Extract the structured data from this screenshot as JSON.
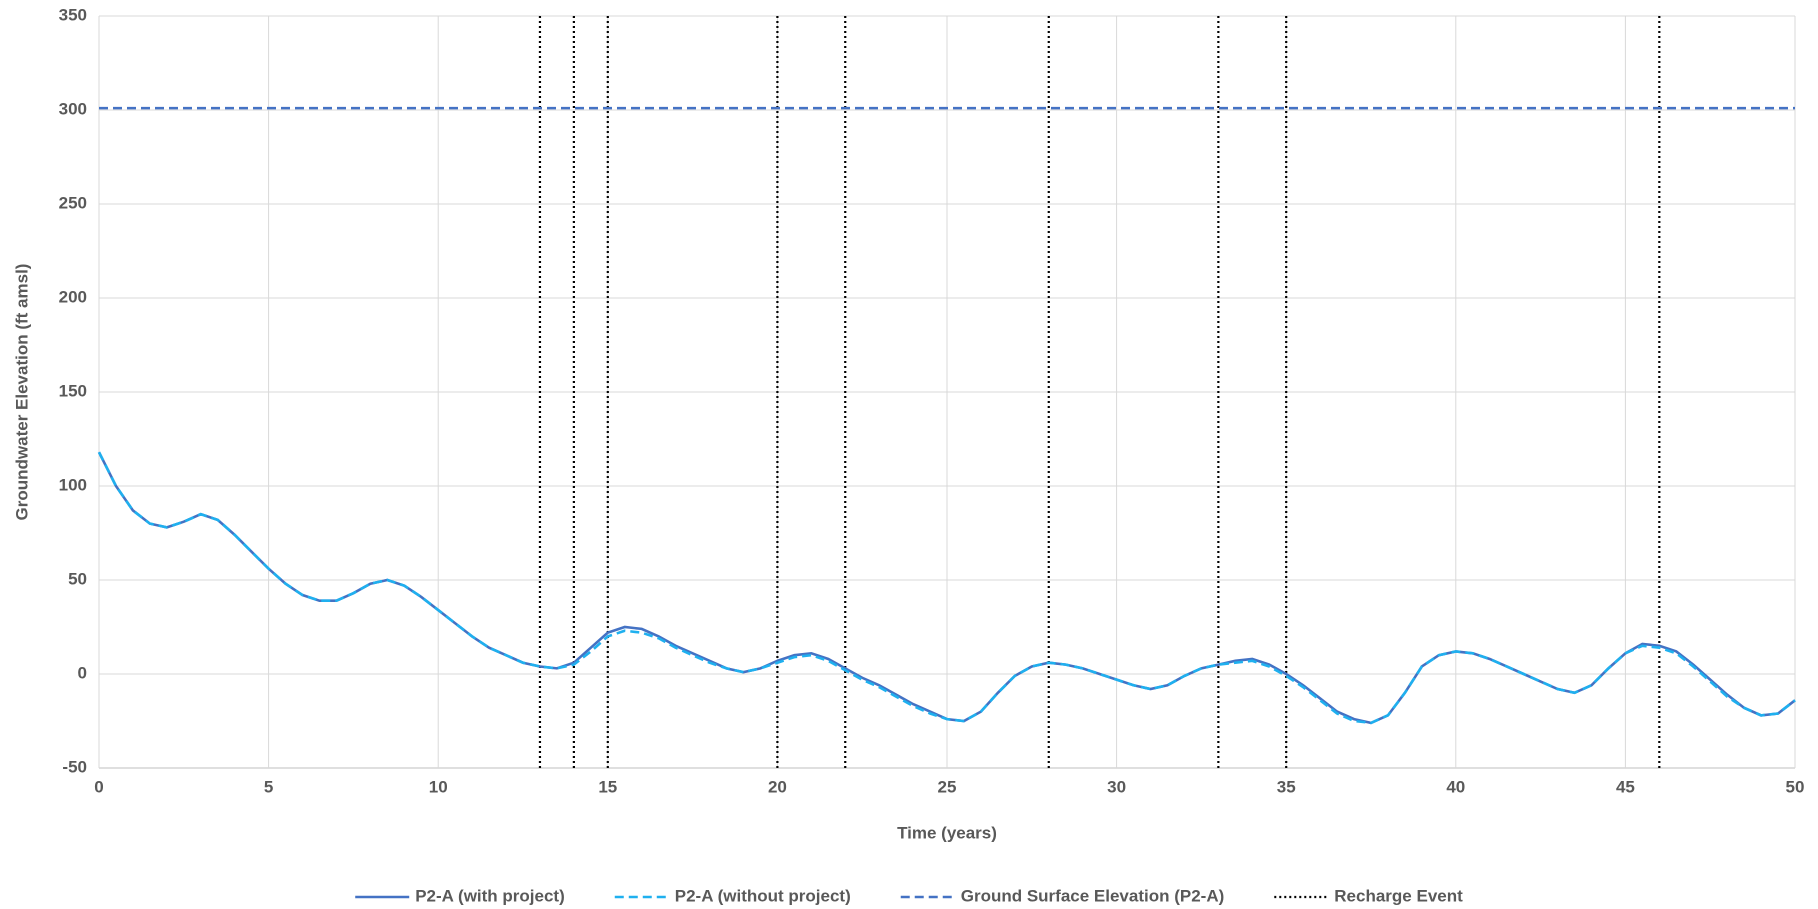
{
  "chart_data": {
    "type": "line",
    "xlabel": "Time (years)",
    "ylabel": "Groundwater Elevation (ft amsl)",
    "xlim": [
      0,
      50
    ],
    "xticks": [
      0,
      5,
      10,
      15,
      20,
      25,
      30,
      35,
      40,
      45,
      50
    ],
    "ylim": [
      -50,
      350
    ],
    "yticks": [
      -50,
      0,
      50,
      100,
      150,
      200,
      250,
      300,
      350
    ],
    "grid": true,
    "legend": "bottom",
    "x": [
      0,
      0.5,
      1,
      1.5,
      2,
      2.5,
      3,
      3.5,
      4,
      4.5,
      5,
      5.5,
      6,
      6.5,
      7,
      7.5,
      8,
      8.5,
      9,
      9.5,
      10,
      10.5,
      11,
      11.5,
      12,
      12.5,
      13,
      13.5,
      14,
      14.5,
      15,
      15.5,
      16,
      16.5,
      17,
      17.5,
      18,
      18.5,
      19,
      19.5,
      20,
      20.5,
      21,
      21.5,
      22,
      22.5,
      23,
      23.5,
      24,
      24.5,
      25,
      25.5,
      26,
      26.5,
      27,
      27.5,
      28,
      28.5,
      29,
      29.5,
      30,
      30.5,
      31,
      31.5,
      32,
      32.5,
      33,
      33.5,
      34,
      34.5,
      35,
      35.5,
      36,
      36.5,
      37,
      37.5,
      38,
      38.5,
      39,
      39.5,
      40,
      40.5,
      41,
      41.5,
      42,
      42.5,
      43,
      43.5,
      44,
      44.5,
      45,
      45.5,
      46,
      46.5,
      47,
      47.5,
      48,
      48.5,
      49,
      49.5,
      50
    ],
    "series": [
      {
        "name": "P2-A (with project)",
        "color": "#4472c4",
        "dash": "solid",
        "values": [
          118,
          100,
          87,
          80,
          78,
          81,
          85,
          82,
          74,
          65,
          56,
          48,
          42,
          39,
          39,
          43,
          48,
          50,
          47,
          41,
          34,
          27,
          20,
          14,
          10,
          6,
          4,
          3,
          6,
          14,
          22,
          25,
          24,
          20,
          15,
          11,
          7,
          3,
          1,
          3,
          7,
          10,
          11,
          8,
          3,
          -2,
          -6,
          -11,
          -16,
          -20,
          -24,
          -25,
          -20,
          -10,
          -1,
          4,
          6,
          5,
          3,
          0,
          -3,
          -6,
          -8,
          -6,
          -1,
          3,
          5,
          7,
          8,
          5,
          0,
          -6,
          -13,
          -20,
          -24,
          -26,
          -22,
          -10,
          4,
          10,
          12,
          11,
          8,
          4,
          0,
          -4,
          -8,
          -10,
          -6,
          3,
          11,
          16,
          15,
          12,
          5,
          -3,
          -11,
          -18,
          -22,
          -21,
          -14
        ]
      },
      {
        "name": "P2-A (without project)",
        "color": "#1fb0ef",
        "dash": "dashed",
        "values": [
          118,
          100,
          87,
          80,
          78,
          81,
          85,
          82,
          74,
          65,
          56,
          48,
          42,
          39,
          39,
          43,
          48,
          50,
          47,
          41,
          34,
          27,
          20,
          14,
          10,
          6,
          4,
          3,
          5,
          12,
          20,
          23,
          22,
          19,
          14,
          10,
          6,
          3,
          1,
          3,
          6,
          9,
          10,
          7,
          2,
          -3,
          -7,
          -12,
          -17,
          -21,
          -24,
          -25,
          -20,
          -10,
          -1,
          4,
          6,
          5,
          3,
          0,
          -3,
          -6,
          -8,
          -6,
          -1,
          3,
          5,
          6,
          7,
          4,
          -1,
          -7,
          -14,
          -21,
          -25,
          -26,
          -22,
          -10,
          4,
          10,
          12,
          11,
          8,
          4,
          0,
          -4,
          -8,
          -10,
          -6,
          3,
          11,
          15,
          14,
          11,
          4,
          -4,
          -12,
          -18,
          -22,
          -21,
          -14
        ]
      },
      {
        "name": "Ground Surface Elevation (P2-A)",
        "color": "#4472c4",
        "dash": "dashed",
        "x": [
          0,
          50
        ],
        "values": [
          301,
          301
        ]
      }
    ],
    "recharge_event": {
      "name": "Recharge Event",
      "color": "#000000",
      "x": [
        13,
        14,
        15,
        20,
        22,
        28,
        33,
        35,
        46
      ]
    }
  }
}
